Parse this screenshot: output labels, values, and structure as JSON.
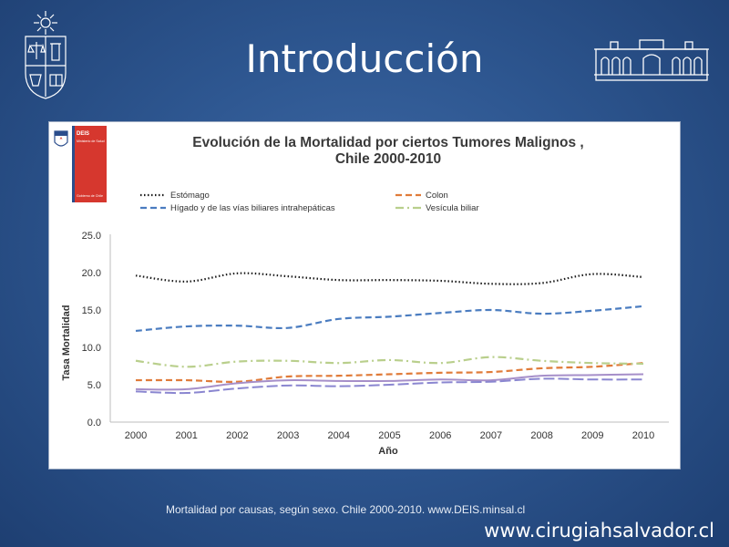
{
  "slide": {
    "title": "Introducción",
    "source": "Mortalidad por causas, según sexo. Chile 2000-2010. www.DEIS.minsal.cl",
    "website": "www.cirugiahsalvador.cl"
  },
  "badge": {
    "org": "DEIS",
    "ministry": "Ministerio de Salud",
    "gov": "Gobierno de Chile"
  },
  "colors": {
    "estomago": "#1a1a1a",
    "colon": "#e07b39",
    "higado": "#4a7cc0",
    "vesicula": "#b9cf8c",
    "purple": "#a68fc9",
    "lavender": "#8a86d0",
    "badge_red": "#d6372e"
  },
  "chart_data": {
    "type": "line",
    "title_line1": "Evolución de la Mortalidad por ciertos Tumores Malignos ,",
    "title_line2": "Chile 2000-2010",
    "xlabel": "Año",
    "ylabel": "Tasa Mortalidad",
    "ylim": [
      0,
      25
    ],
    "yticks": [
      "0.0",
      "5.0",
      "10.0",
      "15.0",
      "20.0",
      "25.0"
    ],
    "x": [
      "2000",
      "2001",
      "2002",
      "2003",
      "2004",
      "2005",
      "2006",
      "2007",
      "2008",
      "2009",
      "2010"
    ],
    "legend_position": "top",
    "grid": false,
    "series": [
      {
        "name": "Estómago",
        "key": "estomago",
        "dash": "1.5 2.5",
        "width": 2.2,
        "values": [
          19.6,
          18.8,
          19.9,
          19.5,
          19.0,
          19.0,
          18.9,
          18.5,
          18.6,
          19.8,
          19.4
        ]
      },
      {
        "name": "Colon",
        "key": "colon",
        "dash": "7 4",
        "width": 2.2,
        "values": [
          5.6,
          5.6,
          5.4,
          6.1,
          6.2,
          6.4,
          6.6,
          6.7,
          7.2,
          7.4,
          7.9
        ]
      },
      {
        "name": "Hígado y de las vías biliares intrahepáticas",
        "key": "higado",
        "dash": "7 4",
        "width": 2.2,
        "values": [
          12.2,
          12.8,
          12.9,
          12.6,
          13.8,
          14.1,
          14.6,
          15.0,
          14.5,
          14.9,
          15.5
        ]
      },
      {
        "name": "Vesícula biliar",
        "key": "vesicula",
        "dash": "9 4 2 4",
        "width": 2.2,
        "values": [
          8.2,
          7.4,
          8.1,
          8.2,
          7.9,
          8.3,
          7.9,
          8.7,
          8.2,
          7.9,
          7.8
        ]
      },
      {
        "name": "",
        "key": "purple",
        "dash": "",
        "width": 2.0,
        "values": [
          4.4,
          4.4,
          5.2,
          5.6,
          5.5,
          5.5,
          5.7,
          5.6,
          6.2,
          6.3,
          6.4
        ]
      },
      {
        "name": "",
        "key": "lavender",
        "dash": "12 4",
        "width": 2.0,
        "values": [
          4.1,
          3.9,
          4.5,
          4.9,
          4.8,
          5.0,
          5.3,
          5.4,
          5.8,
          5.7,
          5.7
        ]
      }
    ]
  }
}
